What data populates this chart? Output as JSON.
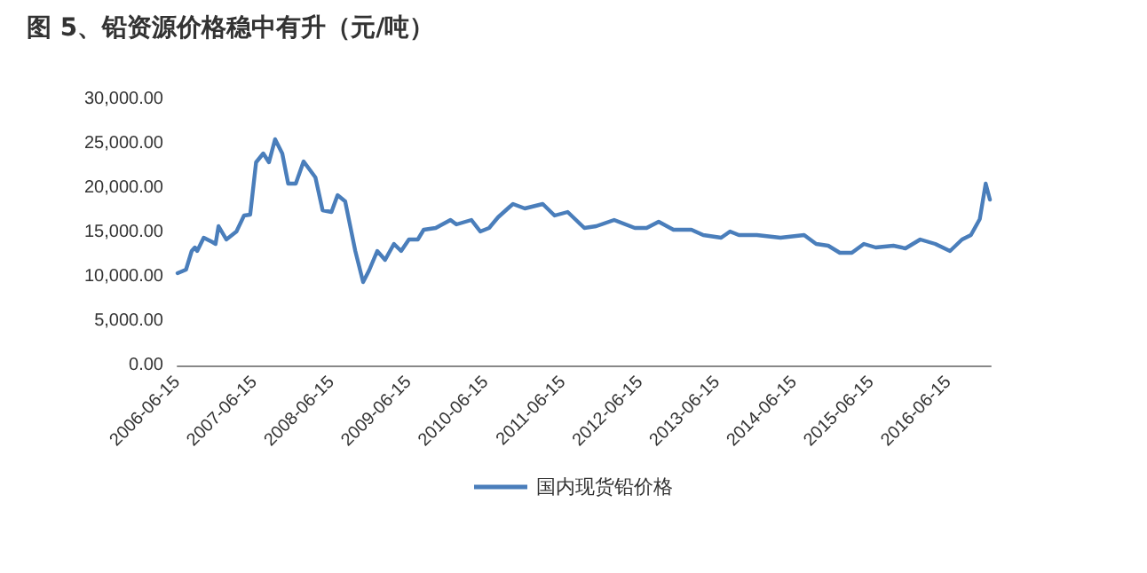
{
  "chart_data": {
    "type": "line",
    "title": "图 5、铅资源价格稳中有升（元/吨）",
    "x": [
      "2006-06-15",
      "2006-07-25",
      "2006-08-21",
      "2006-09-05",
      "2006-09-16",
      "2006-10-17",
      "2006-11-28",
      "2006-12-12",
      "2006-12-26",
      "2007-02-01",
      "2007-03-21",
      "2007-04-26",
      "2007-05-25",
      "2007-06-22",
      "2007-07-26",
      "2007-08-22",
      "2007-09-20",
      "2007-10-24",
      "2007-11-21",
      "2007-12-27",
      "2008-02-02",
      "2008-03-29",
      "2008-05-02",
      "2008-06-13",
      "2008-07-12",
      "2008-08-17",
      "2008-10-04",
      "2008-11-10",
      "2008-12-08",
      "2009-01-16",
      "2009-02-22",
      "2009-04-05",
      "2009-05-09",
      "2009-06-15",
      "2009-07-27",
      "2009-08-24",
      "2009-10-20",
      "2009-12-29",
      "2010-01-26",
      "2010-04-07",
      "2010-05-19",
      "2010-06-30",
      "2010-08-11",
      "2010-10-06",
      "2010-10-21",
      "2010-12-16",
      "2011-03-11",
      "2011-05-06",
      "2011-07-07",
      "2011-09-24",
      "2011-11-19",
      "2012-02-12",
      "2012-05-20",
      "2012-07-15",
      "2012-09-10",
      "2012-11-19",
      "2013-02-12",
      "2013-04-09",
      "2013-07-03",
      "2013-08-14",
      "2013-09-25",
      "2013-12-19",
      "2014-04-10",
      "2014-07-31",
      "2014-09-26",
      "2014-11-22",
      "2015-01-16",
      "2015-03-14",
      "2015-05-10",
      "2015-07-05",
      "2015-09-27",
      "2015-11-23",
      "2016-02-01",
      "2016-04-12",
      "2016-06-21",
      "2016-08-17",
      "2016-09-28",
      "2016-11-09",
      "2016-12-07",
      "2016-12-27"
    ],
    "series": [
      {
        "name": "国内现货铅价格",
        "color": "#4a7ebb",
        "values": [
          10400,
          10800,
          12900,
          13300,
          12900,
          14400,
          13900,
          13700,
          15700,
          14200,
          15100,
          16900,
          17000,
          22900,
          23900,
          22900,
          25500,
          23900,
          20500,
          20500,
          23000,
          21200,
          17500,
          17300,
          19200,
          18500,
          12900,
          9400,
          10700,
          12900,
          11900,
          13700,
          12900,
          14200,
          14200,
          15300,
          15500,
          16400,
          15900,
          16400,
          15100,
          15500,
          16700,
          17900,
          18200,
          17700,
          18200,
          16900,
          17300,
          15500,
          15700,
          16400,
          15500,
          15500,
          16200,
          15300,
          15300,
          14700,
          14400,
          15100,
          14700,
          14700,
          14400,
          14700,
          13700,
          13500,
          12700,
          12700,
          13700,
          13300,
          13500,
          13200,
          14200,
          13700,
          12900,
          14200,
          14700,
          16500,
          20500,
          18700
        ]
      }
    ],
    "xlim": [
      "2006-06-15",
      "2016-12-31"
    ],
    "xticks": [
      "2006-06-15",
      "2007-06-15",
      "2008-06-15",
      "2009-06-15",
      "2010-06-15",
      "2011-06-15",
      "2012-06-15",
      "2013-06-15",
      "2014-06-15",
      "2015-06-15",
      "2016-06-15"
    ],
    "ylim": [
      0,
      30000
    ],
    "yticks": [
      {
        "value": 0,
        "label": "0.00"
      },
      {
        "value": 5000,
        "label": "5,000.00"
      },
      {
        "value": 10000,
        "label": "10,000.00"
      },
      {
        "value": 15000,
        "label": "15,000.00"
      },
      {
        "value": 20000,
        "label": "20,000.00"
      },
      {
        "value": 25000,
        "label": "25,000.00"
      },
      {
        "value": 30000,
        "label": "30,000.00"
      }
    ],
    "grid": false,
    "legend": "bottom",
    "marker": "none",
    "line_style": "solid"
  }
}
